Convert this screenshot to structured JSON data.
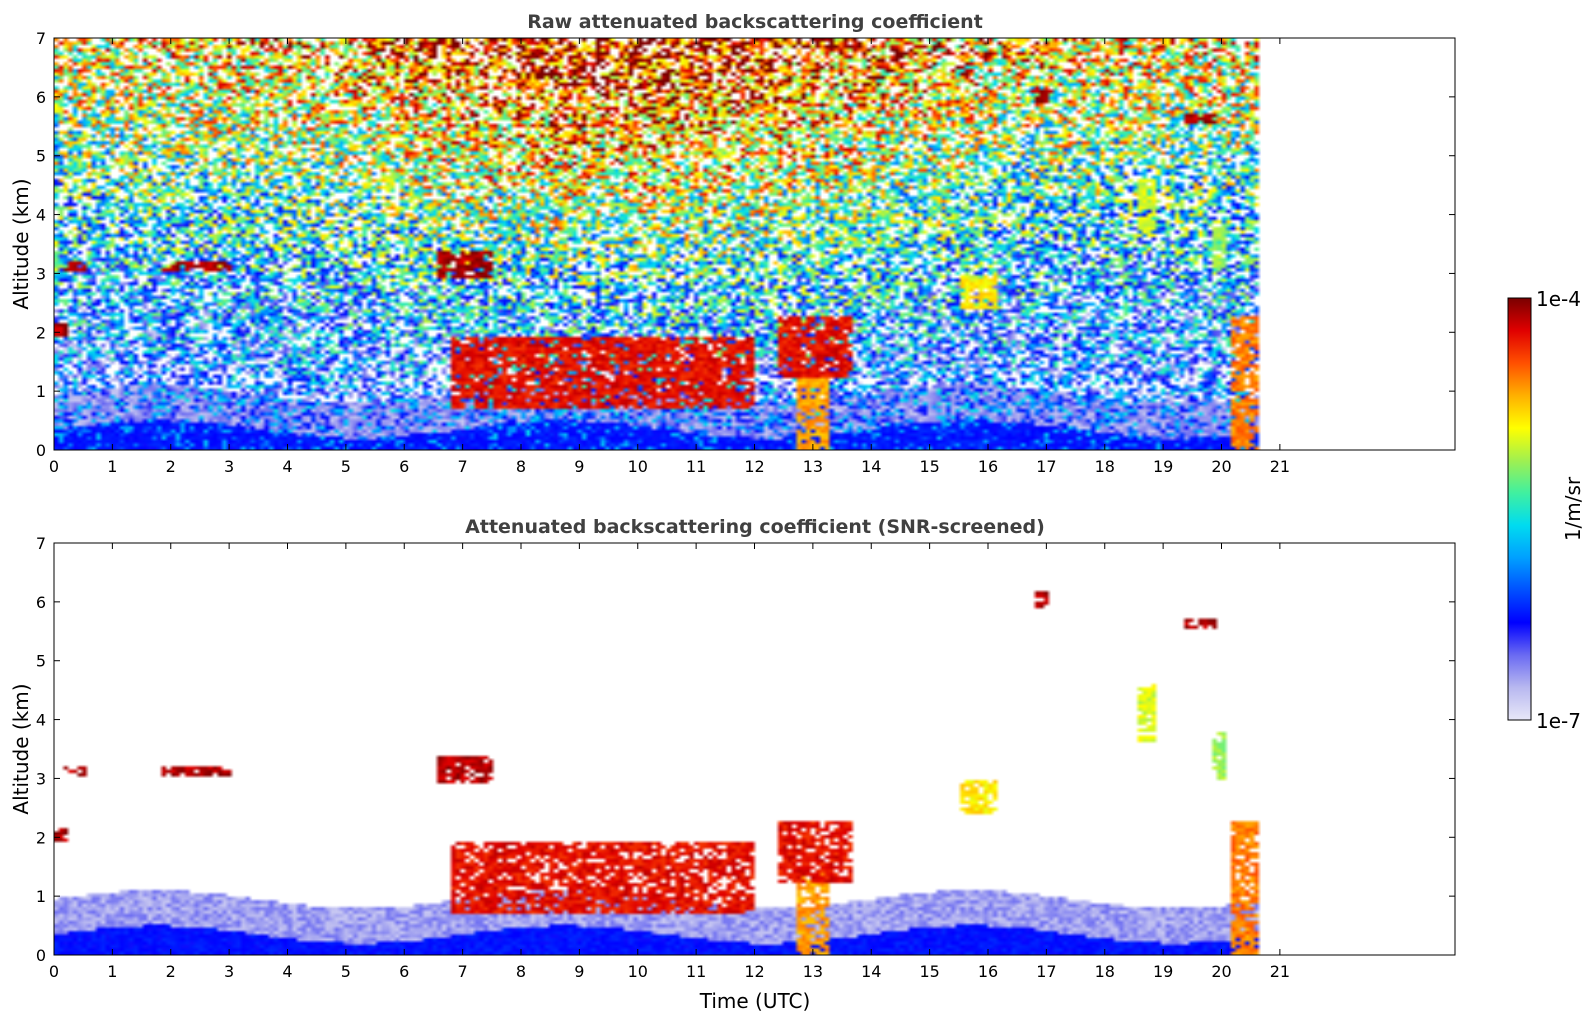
{
  "colors": {
    "colormap": [
      "#e8e8f8",
      "#b8b8f0",
      "#6a6af2",
      "#0000ff",
      "#0050ff",
      "#00a0ff",
      "#00dcf0",
      "#40f0a0",
      "#a0f050",
      "#ffff00",
      "#ffb000",
      "#ff5000",
      "#e00000",
      "#7a0000"
    ],
    "title_text": "#404040",
    "axis": "#000000",
    "cloud_dark": "#1a1a1a"
  },
  "colorbar": {
    "max_label": "1e-4",
    "min_label": "1e-7",
    "unit_label": "1/m/sr",
    "scale": "log"
  },
  "xlabel_bottom": "Time (UTC)",
  "chart_data": [
    {
      "type": "heatmap",
      "title": "Raw attenuated backscattering coefficient",
      "xlabel": "",
      "ylabel": "Altitude (km)",
      "xlim": [
        0,
        24
      ],
      "ylim": [
        0,
        7
      ],
      "xticks": [
        "0",
        "1",
        "2",
        "3",
        "4",
        "5",
        "6",
        "7",
        "8",
        "9",
        "10",
        "11",
        "12",
        "13",
        "14",
        "15",
        "16",
        "17",
        "18",
        "19",
        "20",
        "21"
      ],
      "yticks": [
        "0",
        "1",
        "2",
        "3",
        "4",
        "5",
        "6",
        "7"
      ],
      "data_end_hour": 20.6,
      "screened": false,
      "features": [
        {
          "kind": "cloud",
          "t": [
            0.0,
            0.2
          ],
          "alt": [
            1.95,
            2.15
          ],
          "level": 1.0
        },
        {
          "kind": "cloud",
          "t": [
            0.2,
            0.6
          ],
          "alt": [
            3.05,
            3.2
          ],
          "level": 1.0
        },
        {
          "kind": "cloud",
          "t": [
            1.85,
            3.05
          ],
          "alt": [
            3.02,
            3.22
          ],
          "level": 1.0
        },
        {
          "kind": "cloud",
          "t": [
            6.6,
            7.5
          ],
          "alt": [
            2.9,
            3.4
          ],
          "level": 1.0
        },
        {
          "kind": "cloud",
          "t": [
            6.8,
            12.0
          ],
          "alt": [
            0.7,
            1.9
          ],
          "level": 0.95
        },
        {
          "kind": "cloud",
          "t": [
            12.7,
            13.3
          ],
          "alt": [
            0.0,
            1.4
          ],
          "level": 0.82
        },
        {
          "kind": "cloud",
          "t": [
            12.4,
            13.7
          ],
          "alt": [
            1.2,
            2.3
          ],
          "level": 0.95
        },
        {
          "kind": "cloud",
          "t": [
            15.5,
            16.2
          ],
          "alt": [
            2.4,
            3.0
          ],
          "level": 0.75
        },
        {
          "kind": "cloud",
          "t": [
            18.6,
            18.9
          ],
          "alt": [
            3.6,
            4.6
          ],
          "level": 0.7
        },
        {
          "kind": "cloud",
          "t": [
            19.8,
            20.1
          ],
          "alt": [
            3.0,
            3.8
          ],
          "level": 0.65
        },
        {
          "kind": "cloud",
          "t": [
            20.2,
            20.6
          ],
          "alt": [
            0.0,
            2.3
          ],
          "level": 0.85
        },
        {
          "kind": "cloud",
          "t": [
            19.4,
            19.9
          ],
          "alt": [
            5.55,
            5.7
          ],
          "level": 1.0
        },
        {
          "kind": "cloud",
          "t": [
            16.8,
            17.0
          ],
          "alt": [
            5.9,
            6.2
          ],
          "level": 1.0
        }
      ]
    },
    {
      "type": "heatmap",
      "title": "Attenuated backscattering coefficient (SNR-screened)",
      "xlabel": "Time (UTC)",
      "ylabel": "Altitude (km)",
      "xlim": [
        0,
        24
      ],
      "ylim": [
        0,
        7
      ],
      "xticks": [
        "0",
        "1",
        "2",
        "3",
        "4",
        "5",
        "6",
        "7",
        "8",
        "9",
        "10",
        "11",
        "12",
        "13",
        "14",
        "15",
        "16",
        "17",
        "18",
        "19",
        "20",
        "21"
      ],
      "yticks": [
        "0",
        "1",
        "2",
        "3",
        "4",
        "5",
        "6",
        "7"
      ],
      "data_end_hour": 20.6,
      "screened": true,
      "features": [
        {
          "kind": "cloud",
          "t": [
            0.0,
            0.2
          ],
          "alt": [
            1.95,
            2.15
          ],
          "level": 1.0
        },
        {
          "kind": "cloud",
          "t": [
            0.2,
            0.6
          ],
          "alt": [
            3.05,
            3.2
          ],
          "level": 1.0
        },
        {
          "kind": "cloud",
          "t": [
            1.85,
            3.05
          ],
          "alt": [
            3.02,
            3.22
          ],
          "level": 1.0
        },
        {
          "kind": "cloud",
          "t": [
            6.6,
            7.5
          ],
          "alt": [
            2.9,
            3.4
          ],
          "level": 1.0
        },
        {
          "kind": "cloud",
          "t": [
            6.8,
            12.0
          ],
          "alt": [
            0.7,
            1.9
          ],
          "level": 0.95
        },
        {
          "kind": "cloud",
          "t": [
            12.7,
            13.3
          ],
          "alt": [
            0.0,
            1.4
          ],
          "level": 0.82
        },
        {
          "kind": "cloud",
          "t": [
            12.4,
            13.7
          ],
          "alt": [
            1.2,
            2.3
          ],
          "level": 0.95
        },
        {
          "kind": "cloud",
          "t": [
            15.5,
            16.2
          ],
          "alt": [
            2.4,
            3.0
          ],
          "level": 0.75
        },
        {
          "kind": "cloud",
          "t": [
            18.6,
            18.9
          ],
          "alt": [
            3.6,
            4.6
          ],
          "level": 0.7
        },
        {
          "kind": "cloud",
          "t": [
            19.8,
            20.1
          ],
          "alt": [
            3.0,
            3.8
          ],
          "level": 0.65
        },
        {
          "kind": "cloud",
          "t": [
            20.2,
            20.6
          ],
          "alt": [
            0.0,
            2.3
          ],
          "level": 0.85
        },
        {
          "kind": "cloud",
          "t": [
            19.4,
            19.9
          ],
          "alt": [
            5.55,
            5.7
          ],
          "level": 1.0
        },
        {
          "kind": "cloud",
          "t": [
            16.8,
            17.0
          ],
          "alt": [
            5.9,
            6.2
          ],
          "level": 1.0
        }
      ]
    }
  ]
}
